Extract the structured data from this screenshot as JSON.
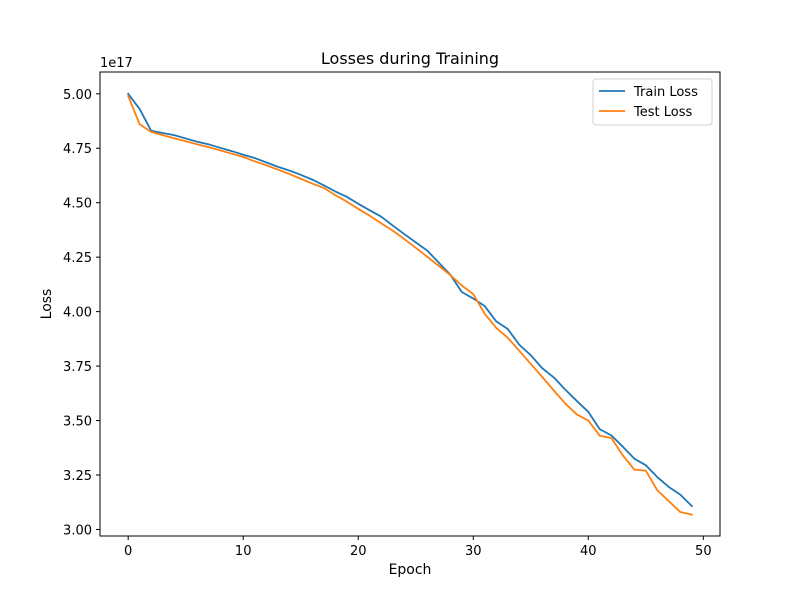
{
  "chart_data": {
    "type": "line",
    "title": "Losses during Training",
    "xlabel": "Epoch",
    "ylabel": "Loss",
    "y_offset_label": "1e17",
    "xlim": [
      -2.45,
      51.45
    ],
    "ylim": [
      2.97,
      5.1
    ],
    "xticks": [
      0,
      10,
      20,
      30,
      40,
      50
    ],
    "yticks": [
      3.0,
      3.25,
      3.5,
      3.75,
      4.0,
      4.25,
      4.5,
      4.75,
      5.0
    ],
    "ytick_labels": [
      "3.00",
      "3.25",
      "3.50",
      "3.75",
      "4.00",
      "4.25",
      "4.50",
      "4.75",
      "5.00"
    ],
    "grid": false,
    "legend_position": "top-right",
    "x": [
      0,
      1,
      2,
      3,
      4,
      5,
      6,
      7,
      8,
      9,
      10,
      11,
      12,
      13,
      14,
      15,
      16,
      17,
      18,
      19,
      20,
      21,
      22,
      23,
      24,
      25,
      26,
      27,
      28,
      29,
      30,
      31,
      32,
      33,
      34,
      35,
      36,
      37,
      38,
      39,
      40,
      41,
      42,
      43,
      44,
      45,
      46,
      47,
      48,
      49
    ],
    "series": [
      {
        "name": "Train Loss",
        "color": "#1f77b4",
        "values": [
          5.0,
          4.93,
          4.83,
          4.82,
          4.81,
          4.795,
          4.78,
          4.768,
          4.752,
          4.737,
          4.72,
          4.705,
          4.685,
          4.665,
          4.648,
          4.628,
          4.606,
          4.58,
          4.552,
          4.527,
          4.495,
          4.465,
          4.436,
          4.395,
          4.356,
          4.318,
          4.28,
          4.225,
          4.17,
          4.09,
          4.06,
          4.025,
          3.955,
          3.92,
          3.848,
          3.8,
          3.74,
          3.698,
          3.642,
          3.59,
          3.54,
          3.46,
          3.432,
          3.38,
          3.325,
          3.295,
          3.24,
          3.195,
          3.16,
          3.107
        ]
      },
      {
        "name": "Test Loss",
        "color": "#ff7f0e",
        "values": [
          4.99,
          4.86,
          4.825,
          4.81,
          4.796,
          4.782,
          4.768,
          4.755,
          4.74,
          4.725,
          4.71,
          4.69,
          4.672,
          4.652,
          4.632,
          4.61,
          4.588,
          4.568,
          4.535,
          4.505,
          4.472,
          4.44,
          4.405,
          4.372,
          4.333,
          4.293,
          4.252,
          4.21,
          4.168,
          4.12,
          4.08,
          3.99,
          3.925,
          3.88,
          3.82,
          3.76,
          3.7,
          3.638,
          3.578,
          3.528,
          3.5,
          3.43,
          3.42,
          3.34,
          3.275,
          3.27,
          3.18,
          3.13,
          3.08,
          3.068
        ]
      }
    ]
  }
}
